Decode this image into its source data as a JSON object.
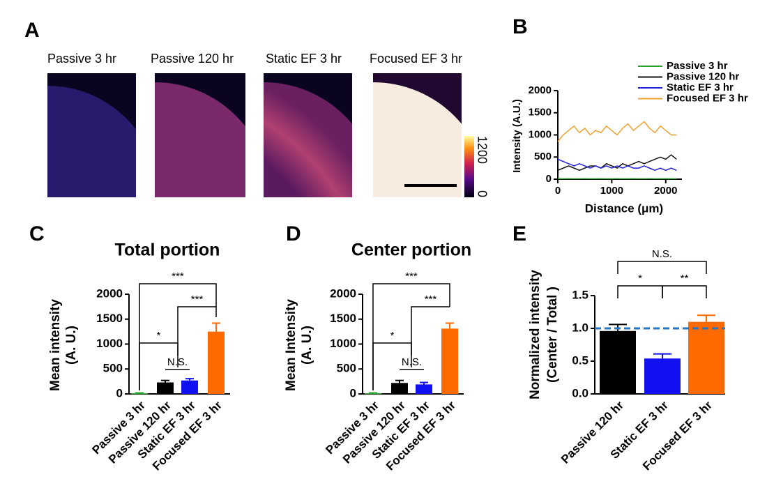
{
  "panel_labels": [
    "A",
    "B",
    "C",
    "D",
    "E"
  ],
  "images": {
    "titles": [
      "Passive 3 hr",
      "Passive 120 hr",
      "Static EF 3 hr",
      "Focused EF 3 hr"
    ],
    "colorbar_ticks": [
      0,
      1200
    ]
  },
  "chart_data": [
    {
      "type": "line",
      "xlabel": "Distance (μm)",
      "ylabel": "Intensity (A.U.)",
      "x": [
        0,
        100,
        200,
        300,
        400,
        500,
        600,
        700,
        800,
        900,
        1000,
        1100,
        1200,
        1300,
        1400,
        1500,
        1600,
        1700,
        1800,
        1900,
        2000,
        2100,
        2200
      ],
      "series": [
        {
          "name": "Passive 3 hr",
          "color": "#2ca02c",
          "values": [
            10,
            10,
            12,
            10,
            10,
            11,
            10,
            10,
            12,
            10,
            10,
            11,
            10,
            10,
            12,
            10,
            10,
            11,
            10,
            10,
            12,
            10,
            10
          ]
        },
        {
          "name": "Passive 120 hr",
          "color": "#111111",
          "values": [
            200,
            250,
            300,
            250,
            200,
            250,
            300,
            300,
            250,
            350,
            300,
            250,
            350,
            300,
            350,
            400,
            350,
            400,
            450,
            500,
            450,
            550,
            450
          ]
        },
        {
          "name": "Static EF 3 hr",
          "color": "#1f1fe0",
          "values": [
            450,
            400,
            350,
            300,
            350,
            300,
            250,
            300,
            250,
            300,
            250,
            300,
            250,
            300,
            250,
            250,
            300,
            250,
            200,
            250,
            200,
            250,
            200
          ]
        },
        {
          "name": "Focused EF 3 hr",
          "color": "#f0a030",
          "values": [
            850,
            1000,
            1100,
            1200,
            1050,
            1150,
            1000,
            1100,
            1050,
            1200,
            1100,
            1000,
            1150,
            1250,
            1100,
            1200,
            1300,
            1150,
            1050,
            1200,
            1100,
            1000,
            1000
          ]
        }
      ],
      "xlim": [
        0,
        2300
      ],
      "xticks": [
        0,
        1000,
        2000
      ],
      "ylim": [
        0,
        2000
      ],
      "yticks": [
        0,
        500,
        1000,
        1500,
        2000
      ]
    },
    {
      "type": "bar",
      "title": "Total portion",
      "ylabel": [
        "Mean intensity",
        "(A. U.)"
      ],
      "categories": [
        "Passive 3 hr",
        "Passive 120 hr",
        "Static EF 3 hr",
        "Focused EF 3 hr"
      ],
      "values": [
        15,
        230,
        270,
        1250
      ],
      "errors": [
        5,
        40,
        35,
        170
      ],
      "colors": [
        "#2ca02c",
        "#000000",
        "#1010f0",
        "#ff6a00"
      ],
      "ylim": [
        0,
        2000
      ],
      "yticks": [
        0,
        500,
        1000,
        1500,
        2000
      ],
      "significance": [
        "***",
        "***",
        "*",
        "N.S."
      ]
    },
    {
      "type": "bar",
      "title": "Center portion",
      "ylabel": [
        "Mean Intensity",
        "(A. U.)"
      ],
      "categories": [
        "Passive 3 hr",
        "Passive 120 hr",
        "Static EF 3 hr",
        "Focused EF 3 hr"
      ],
      "values": [
        15,
        220,
        190,
        1310
      ],
      "errors": [
        5,
        50,
        40,
        110
      ],
      "colors": [
        "#2ca02c",
        "#000000",
        "#1010f0",
        "#ff6a00"
      ],
      "ylim": [
        0,
        2000
      ],
      "yticks": [
        0,
        500,
        1000,
        1500,
        2000
      ],
      "significance": [
        "***",
        "***",
        "*",
        "N.S."
      ]
    },
    {
      "type": "bar",
      "ylabel": [
        "Normalized intensity",
        "(Center / Total )"
      ],
      "categories": [
        "Passive 120 hr",
        "Static EF 3 hr",
        "Focused EF 3 hr"
      ],
      "values": [
        0.96,
        0.54,
        1.1
      ],
      "errors": [
        0.1,
        0.07,
        0.1
      ],
      "colors": [
        "#000000",
        "#1010f0",
        "#ff6a00"
      ],
      "ylim": [
        0,
        1.5
      ],
      "yticks": [
        {
          "value": 0,
          "label": "0.0"
        },
        0.5,
        {
          "value": 1,
          "label": "1.0"
        },
        1.5
      ],
      "reference_line": 1,
      "reference_color": "#1f78c8",
      "significance": [
        "N.S.",
        "*",
        "**"
      ]
    }
  ]
}
